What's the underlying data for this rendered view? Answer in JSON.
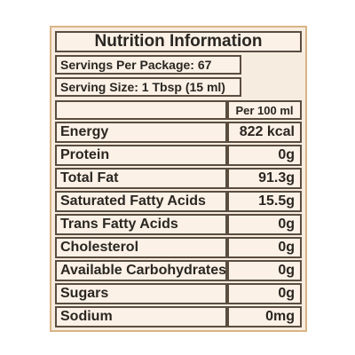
{
  "label": {
    "title": "Nutrition Information",
    "servings_per_package": "Servings Per Package: 67",
    "serving_size": "Serving Size: 1 Tbsp (15 ml)",
    "column_header": "Per 100 ml",
    "nutrients": [
      {
        "name": "Energy",
        "value": "822 kcal"
      },
      {
        "name": "Protein",
        "value": "0g"
      },
      {
        "name": "Total Fat",
        "value": "91.3g"
      },
      {
        "name": "Saturated Fatty Acids",
        "value": "15.5g"
      },
      {
        "name": "Trans Fatty Acids",
        "value": "0g"
      },
      {
        "name": "Cholesterol",
        "value": "0g"
      },
      {
        "name": "Available Carbohydrates",
        "value": "0g"
      },
      {
        "name": "Sugars",
        "value": "0g"
      },
      {
        "name": "Sodium",
        "value": "0mg"
      }
    ]
  }
}
